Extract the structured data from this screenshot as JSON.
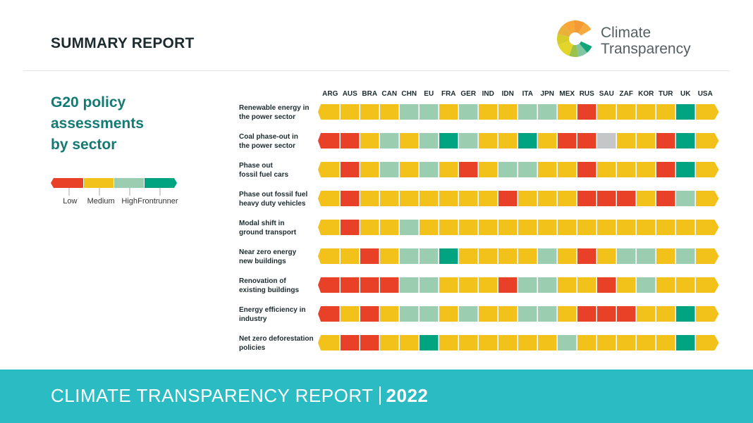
{
  "header": {
    "title": "SUMMARY REPORT",
    "logo_line1": "Climate",
    "logo_line2": "Transparency"
  },
  "heading": {
    "line1": "G20 policy",
    "line2": "assessments",
    "line3": "by sector"
  },
  "colors": {
    "Low": "#e94128",
    "Medium": "#f2c11a",
    "High": "#9bcdb0",
    "Frontrunner": "#00a481",
    "NA": "#c4c6c7",
    "heading": "#137a74",
    "footer": "#2bbcc3"
  },
  "legend": {
    "items": [
      "Low",
      "Medium",
      "High",
      "Frontrunner"
    ]
  },
  "footer": {
    "text": "CLIMATE TRANSPARENCY REPORT",
    "year": "2022"
  },
  "chart_data": {
    "type": "heatmap",
    "title": "G20 policy assessments by sector",
    "categories": [
      "ARG",
      "AUS",
      "BRA",
      "CAN",
      "CHN",
      "EU",
      "FRA",
      "GER",
      "IND",
      "IDN",
      "ITA",
      "JPN",
      "MEX",
      "RUS",
      "SAU",
      "ZAF",
      "KOR",
      "TUR",
      "UK",
      "USA"
    ],
    "scale": [
      "Low",
      "Medium",
      "High",
      "Frontrunner"
    ],
    "rows": [
      {
        "label1": "Renewable energy in",
        "label2": "the power sector",
        "values": [
          "Medium",
          "Medium",
          "Medium",
          "Medium",
          "High",
          "High",
          "Medium",
          "High",
          "Medium",
          "Medium",
          "High",
          "High",
          "Medium",
          "Low",
          "Medium",
          "Medium",
          "Medium",
          "Medium",
          "Frontrunner",
          "Medium"
        ]
      },
      {
        "label1": "Coal phase-out in",
        "label2": "the power sector",
        "values": [
          "Low",
          "Low",
          "Medium",
          "High",
          "Medium",
          "High",
          "Frontrunner",
          "High",
          "Medium",
          "Medium",
          "Frontrunner",
          "Medium",
          "Low",
          "Low",
          "NA",
          "Medium",
          "Medium",
          "Low",
          "Frontrunner",
          "Medium"
        ]
      },
      {
        "label1": "Phase out",
        "label2": "fossil fuel cars",
        "values": [
          "Medium",
          "Low",
          "Medium",
          "High",
          "Medium",
          "High",
          "Medium",
          "Low",
          "Medium",
          "High",
          "High",
          "Medium",
          "Medium",
          "Low",
          "Medium",
          "Medium",
          "Medium",
          "Low",
          "Frontrunner",
          "Medium"
        ]
      },
      {
        "label1": "Phase out fossil fuel",
        "label2": "heavy duty vehicles",
        "values": [
          "Medium",
          "Low",
          "Medium",
          "Medium",
          "Medium",
          "Medium",
          "Medium",
          "Medium",
          "Medium",
          "Low",
          "Medium",
          "Medium",
          "Medium",
          "Low",
          "Low",
          "Low",
          "Medium",
          "Low",
          "High",
          "Medium"
        ]
      },
      {
        "label1": "Modal shift in",
        "label2": "ground transport",
        "values": [
          "Medium",
          "Low",
          "Medium",
          "Medium",
          "High",
          "Medium",
          "Medium",
          "Medium",
          "Medium",
          "Medium",
          "Medium",
          "Medium",
          "Medium",
          "Medium",
          "Medium",
          "Medium",
          "Medium",
          "Medium",
          "Medium",
          "Medium"
        ]
      },
      {
        "label1": "Near zero energy",
        "label2": "new buildings",
        "values": [
          "Medium",
          "Medium",
          "Low",
          "Medium",
          "High",
          "High",
          "Frontrunner",
          "Medium",
          "Medium",
          "Medium",
          "Medium",
          "High",
          "Medium",
          "Low",
          "Medium",
          "High",
          "High",
          "Medium",
          "High",
          "Medium"
        ]
      },
      {
        "label1": "Renovation of",
        "label2": "existing buildings",
        "values": [
          "Low",
          "Low",
          "Low",
          "Low",
          "High",
          "High",
          "Medium",
          "Medium",
          "Medium",
          "Low",
          "High",
          "High",
          "Medium",
          "Medium",
          "Low",
          "Medium",
          "High",
          "Medium",
          "Medium",
          "Medium"
        ]
      },
      {
        "label1": "Energy efficiency in",
        "label2": "industry",
        "values": [
          "Low",
          "Medium",
          "Low",
          "Medium",
          "High",
          "High",
          "Medium",
          "High",
          "Medium",
          "Medium",
          "High",
          "High",
          "Medium",
          "Low",
          "Low",
          "Low",
          "Medium",
          "Medium",
          "Frontrunner",
          "Medium"
        ]
      },
      {
        "label1": "Net zero deforestation",
        "label2": "policies",
        "values": [
          "Medium",
          "Low",
          "Low",
          "Medium",
          "Medium",
          "Frontrunner",
          "Medium",
          "Medium",
          "Medium",
          "Medium",
          "Medium",
          "Medium",
          "High",
          "Medium",
          "Medium",
          "Medium",
          "Medium",
          "Medium",
          "Frontrunner",
          "Medium"
        ]
      }
    ]
  }
}
